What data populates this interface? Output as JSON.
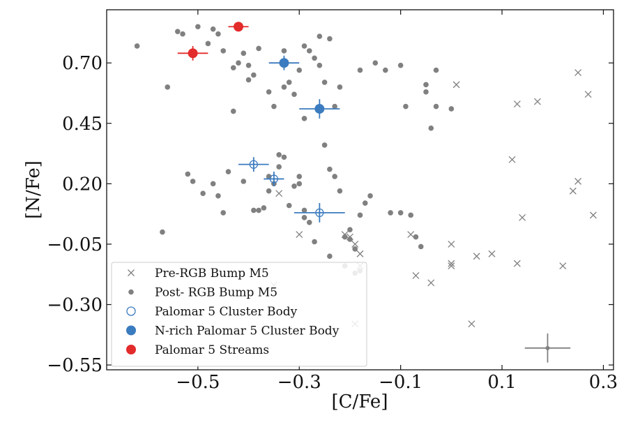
{
  "chart_data": {
    "type": "scatter",
    "xlabel": "[C/Fe]",
    "ylabel": "[N/Fe]",
    "xlim": [
      -0.68,
      0.32
    ],
    "ylim": [
      -0.57,
      0.92
    ],
    "xticks": [
      -0.5,
      -0.3,
      -0.1,
      0.1,
      0.3
    ],
    "xtick_labels": [
      "−0.5",
      "−0.3",
      "−0.1",
      "0.1",
      "0.3"
    ],
    "yticks": [
      -0.55,
      -0.3,
      -0.05,
      0.2,
      0.45,
      0.7
    ],
    "ytick_labels": [
      "−0.55",
      "−0.30",
      "−0.05",
      "0.20",
      "0.45",
      "0.70"
    ],
    "legend_position": "bottom-left",
    "series": [
      {
        "name": "Pre-RGB Bump M5",
        "marker": "x",
        "color": "#808080",
        "points": [
          [
            0.01,
            0.61
          ],
          [
            0.25,
            0.66
          ],
          [
            0.27,
            0.57
          ],
          [
            0.17,
            0.54
          ],
          [
            0.13,
            0.53
          ],
          [
            0.12,
            0.3
          ],
          [
            0.25,
            0.21
          ],
          [
            0.24,
            0.17
          ],
          [
            0.14,
            0.06
          ],
          [
            0.28,
            0.07
          ],
          [
            -0.34,
            0.16
          ],
          [
            -0.3,
            -0.01
          ],
          [
            -0.21,
            -0.01
          ],
          [
            -0.2,
            -0.02
          ],
          [
            -0.19,
            -0.05
          ],
          [
            -0.18,
            -0.09
          ],
          [
            -0.18,
            -0.14
          ],
          [
            -0.08,
            -0.01
          ],
          [
            -0.07,
            -0.18
          ],
          [
            -0.04,
            -0.21
          ],
          [
            0.0,
            -0.05
          ],
          [
            0.0,
            -0.14
          ],
          [
            0.0,
            -0.13
          ],
          [
            0.05,
            -0.1
          ],
          [
            0.08,
            -0.09
          ],
          [
            0.13,
            -0.13
          ],
          [
            0.22,
            -0.14
          ],
          [
            0.04,
            -0.38
          ],
          [
            -0.19,
            -0.38
          ],
          [
            -0.35,
            -0.22
          ]
        ]
      },
      {
        "name": "Post- RGB Bump M5",
        "marker": "o",
        "color": "#808080",
        "points": [
          [
            -0.62,
            0.77
          ],
          [
            -0.56,
            0.6
          ],
          [
            -0.54,
            0.83
          ],
          [
            -0.53,
            0.82
          ],
          [
            -0.5,
            0.85
          ],
          [
            -0.48,
            0.78
          ],
          [
            -0.47,
            0.84
          ],
          [
            -0.46,
            0.82
          ],
          [
            -0.45,
            0.75
          ],
          [
            -0.43,
            0.68
          ],
          [
            -0.42,
            0.7
          ],
          [
            -0.41,
            0.74
          ],
          [
            -0.4,
            0.69
          ],
          [
            -0.4,
            0.63
          ],
          [
            -0.39,
            0.65
          ],
          [
            -0.38,
            0.76
          ],
          [
            -0.36,
            0.58
          ],
          [
            -0.35,
            0.52
          ],
          [
            -0.33,
            0.75
          ],
          [
            -0.33,
            0.6
          ],
          [
            -0.32,
            0.62
          ],
          [
            -0.31,
            0.57
          ],
          [
            -0.3,
            0.67
          ],
          [
            -0.29,
            0.77
          ],
          [
            -0.28,
            0.75
          ],
          [
            -0.27,
            0.72
          ],
          [
            -0.26,
            0.69
          ],
          [
            -0.25,
            0.62
          ],
          [
            -0.26,
            0.81
          ],
          [
            -0.24,
            0.8
          ],
          [
            -0.43,
            0.5
          ],
          [
            -0.29,
            0.47
          ],
          [
            -0.23,
            0.52
          ],
          [
            -0.22,
            0.6
          ],
          [
            -0.18,
            0.67
          ],
          [
            -0.15,
            0.7
          ],
          [
            -0.13,
            0.67
          ],
          [
            -0.1,
            0.69
          ],
          [
            -0.09,
            0.52
          ],
          [
            -0.05,
            0.58
          ],
          [
            -0.05,
            0.61
          ],
          [
            -0.03,
            0.52
          ],
          [
            -0.03,
            0.67
          ],
          [
            0.0,
            0.51
          ],
          [
            -0.04,
            0.43
          ],
          [
            -0.57,
            0.0
          ],
          [
            -0.52,
            0.24
          ],
          [
            -0.51,
            0.21
          ],
          [
            -0.49,
            0.16
          ],
          [
            -0.47,
            0.2
          ],
          [
            -0.46,
            0.15
          ],
          [
            -0.44,
            0.25
          ],
          [
            -0.45,
            0.08
          ],
          [
            -0.41,
            0.21
          ],
          [
            -0.39,
            0.09
          ],
          [
            -0.38,
            0.09
          ],
          [
            -0.37,
            0.1
          ],
          [
            -0.36,
            0.23
          ],
          [
            -0.36,
            0.17
          ],
          [
            -0.35,
            0.2
          ],
          [
            -0.34,
            0.27
          ],
          [
            -0.34,
            0.32
          ],
          [
            -0.33,
            0.31
          ],
          [
            -0.32,
            0.11
          ],
          [
            -0.31,
            0.19
          ],
          [
            -0.3,
            0.23
          ],
          [
            -0.3,
            0.2
          ],
          [
            -0.29,
            0.09
          ],
          [
            -0.29,
            0.06
          ],
          [
            -0.28,
            0.04
          ],
          [
            -0.27,
            -0.04
          ],
          [
            -0.25,
            0.36
          ],
          [
            -0.24,
            0.26
          ],
          [
            -0.23,
            0.23
          ],
          [
            -0.22,
            0.17
          ],
          [
            -0.21,
            -0.02
          ],
          [
            -0.2,
            -0.03
          ],
          [
            -0.19,
            -0.07
          ],
          [
            -0.2,
            0.01
          ],
          [
            -0.18,
            0.07
          ],
          [
            -0.17,
            0.12
          ],
          [
            -0.16,
            0.15
          ],
          [
            -0.12,
            0.08
          ],
          [
            -0.1,
            0.08
          ],
          [
            -0.08,
            0.07
          ],
          [
            -0.07,
            -0.02
          ],
          [
            -0.06,
            -0.06
          ],
          [
            -0.24,
            -0.1
          ],
          [
            -0.21,
            -0.14
          ],
          [
            -0.19,
            -0.17
          ],
          [
            -0.18,
            -0.16
          ]
        ]
      },
      {
        "name": "Palomar 5 Cluster Body",
        "marker": "open-circle",
        "color": "#3b7bbf",
        "points": [
          {
            "x": -0.39,
            "y": 0.28,
            "xerr": 0.03,
            "yerr": 0.03
          },
          {
            "x": -0.35,
            "y": 0.22,
            "xerr": 0.02,
            "yerr": 0.03
          },
          {
            "x": -0.26,
            "y": 0.08,
            "xerr": 0.05,
            "yerr": 0.04
          }
        ]
      },
      {
        "name": "N-rich Palomar 5 Cluster Body",
        "marker": "filled-circle",
        "color": "#3b7bbf",
        "points": [
          {
            "x": -0.33,
            "y": 0.7,
            "xerr": 0.03,
            "yerr": 0.03
          },
          {
            "x": -0.26,
            "y": 0.51,
            "xerr": 0.04,
            "yerr": 0.04
          }
        ]
      },
      {
        "name": "Palomar 5 Streams",
        "marker": "filled-circle",
        "color": "#e32b2b",
        "points": [
          {
            "x": -0.51,
            "y": 0.74,
            "xerr": 0.03,
            "yerr": 0.03
          },
          {
            "x": -0.42,
            "y": 0.85,
            "xerr": 0.02,
            "yerr": 0.02
          }
        ]
      }
    ],
    "error_cross": {
      "x": 0.19,
      "y": -0.48,
      "xerr": 0.045,
      "yerr": 0.06,
      "color": "#808080"
    }
  }
}
